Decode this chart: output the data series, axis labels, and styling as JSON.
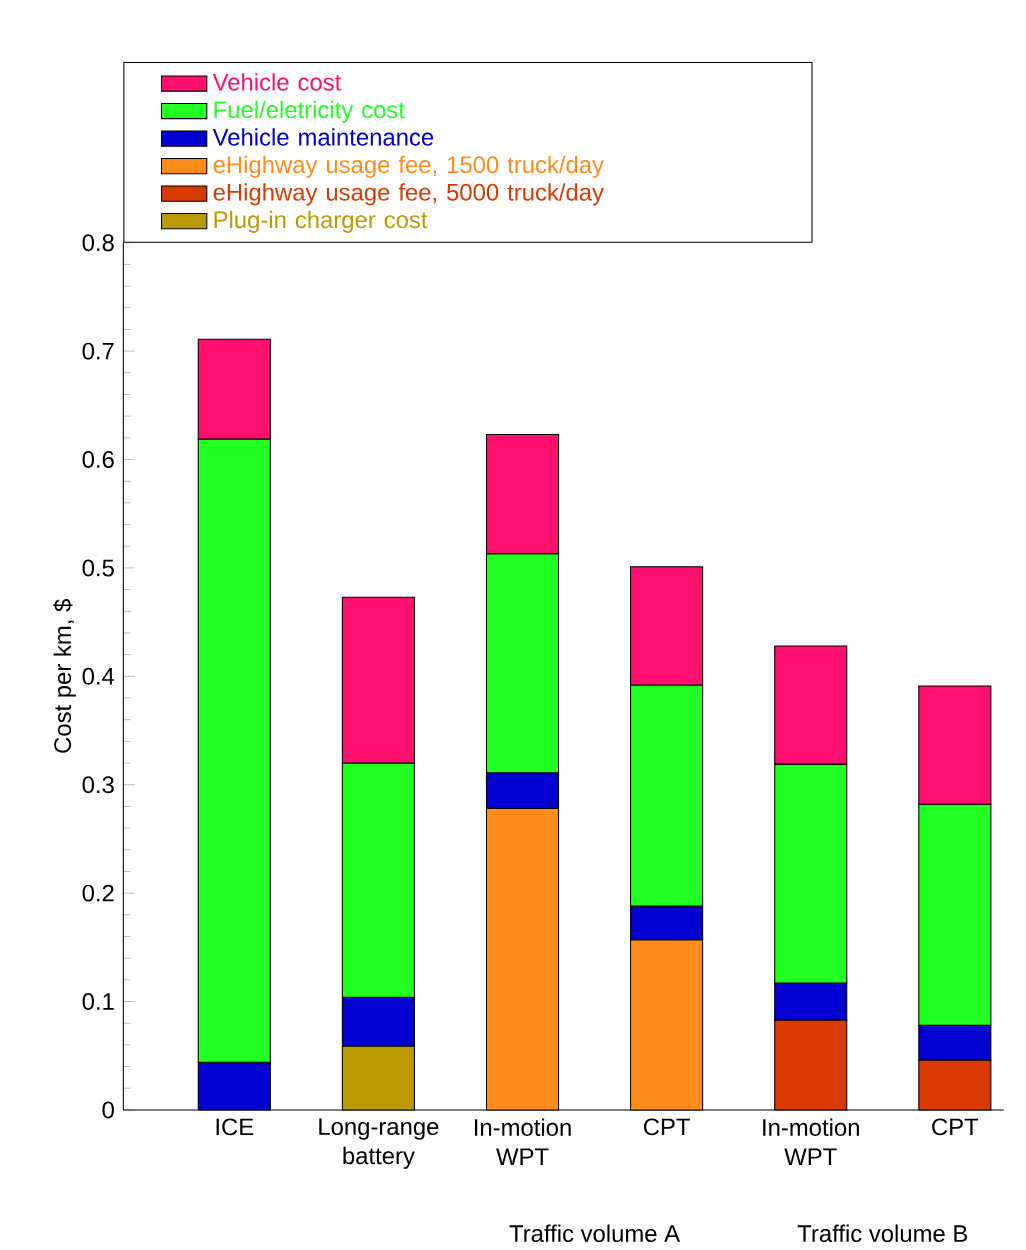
{
  "chart_data": {
    "type": "bar",
    "stacked": true,
    "ylabel": "Cost per km, $",
    "categories": [
      "ICE",
      "Long-range battery",
      "In-motion WPT",
      "CPT",
      "In-motion WPT",
      "CPT"
    ],
    "series": [
      {
        "name": "Plug-in charger cost",
        "color": "#bb9900",
        "values": [
          null,
          0.059,
          null,
          null,
          null,
          null
        ]
      },
      {
        "name": "eHighway usage fee, 5000 truck/day",
        "color": "#d83a00",
        "values": [
          null,
          null,
          null,
          null,
          0.083,
          0.046
        ]
      },
      {
        "name": "eHighway usage fee, 1500 truck/day",
        "color": "#ff8c1a",
        "values": [
          null,
          null,
          0.278,
          0.157,
          null,
          null
        ]
      },
      {
        "name": "Vehicle maintenance",
        "color": "#0000d0",
        "values": [
          0.044,
          0.045,
          0.033,
          0.031,
          0.034,
          0.032
        ]
      },
      {
        "name": "Fuel/eletricity cost",
        "color": "#22ff22",
        "values": [
          0.575,
          0.216,
          0.202,
          0.204,
          0.202,
          0.204
        ]
      },
      {
        "name": "Vehicle cost",
        "color": "#ff0f6e",
        "values": [
          0.092,
          0.153,
          0.11,
          0.109,
          0.109,
          0.109
        ]
      }
    ],
    "ylim": [
      0,
      0.8
    ],
    "yticks": [
      0,
      0.1,
      0.2,
      0.3,
      0.4,
      0.5,
      0.6,
      0.7,
      0.8
    ],
    "legend": "top left",
    "grid": false,
    "annotations": [
      "Traffic volume A",
      "Traffic volume B"
    ]
  }
}
